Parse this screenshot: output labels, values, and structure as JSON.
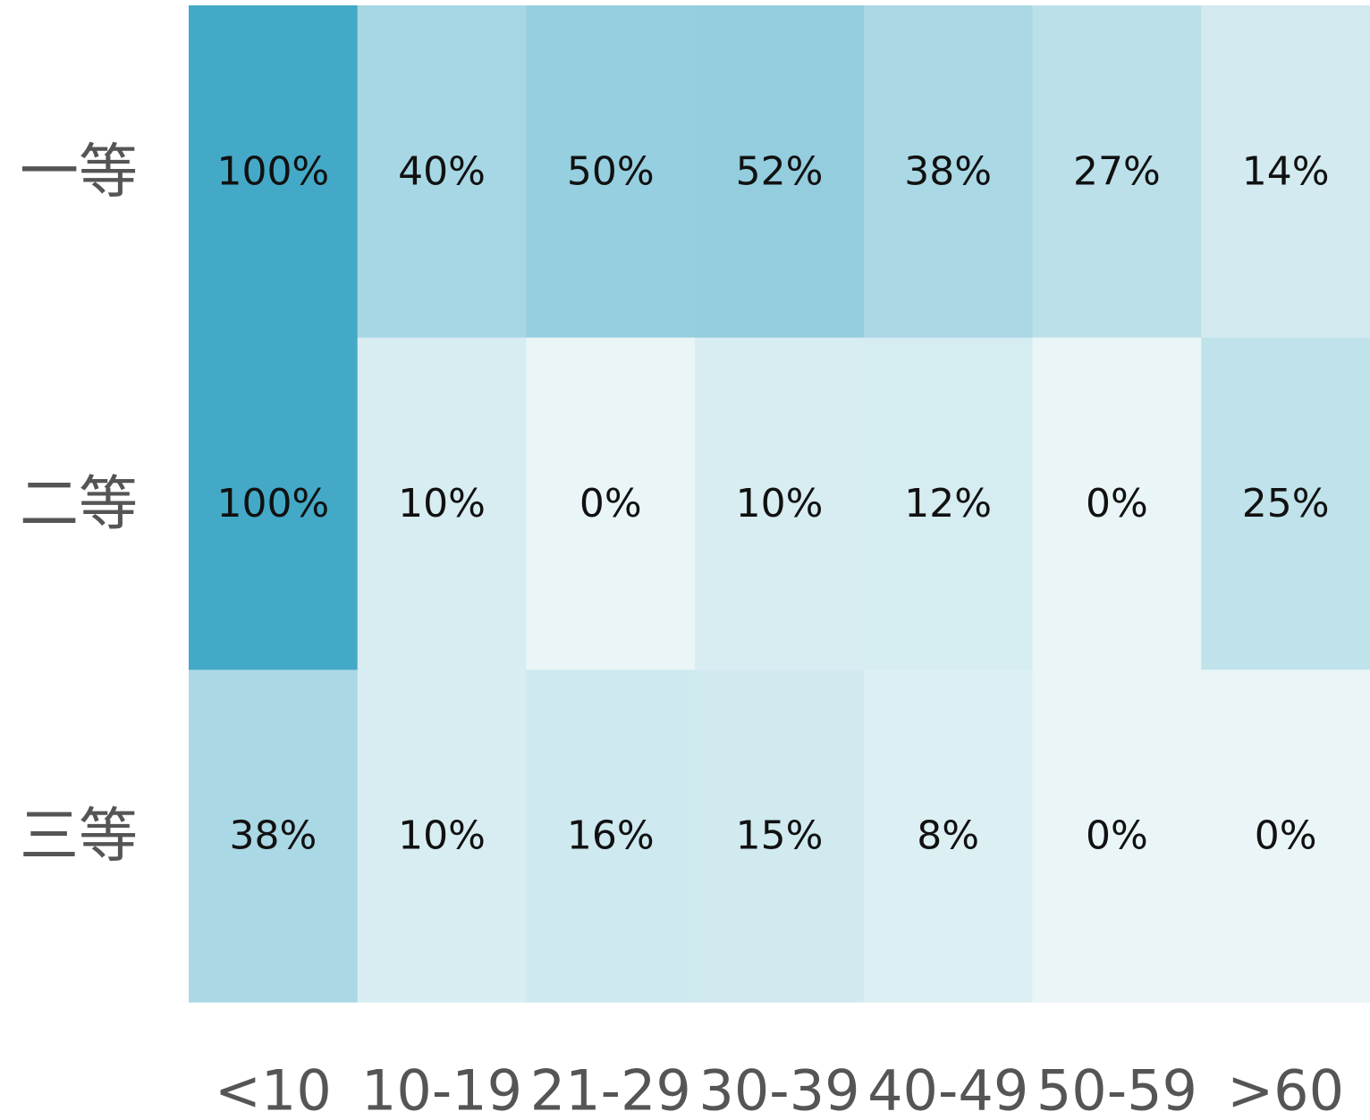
{
  "chart_data": {
    "type": "heatmap",
    "rows": [
      "一等",
      "二等",
      "三等"
    ],
    "columns": [
      "<10",
      "10-19",
      "21-29",
      "30-39",
      "40-49",
      "50-59",
      ">60"
    ],
    "values": [
      [
        100,
        40,
        50,
        52,
        38,
        27,
        14
      ],
      [
        100,
        10,
        0,
        10,
        12,
        0,
        25
      ],
      [
        38,
        10,
        16,
        15,
        8,
        0,
        0
      ]
    ],
    "cell_labels": [
      [
        "100%",
        "40%",
        "50%",
        "52%",
        "38%",
        "27%",
        "14%"
      ],
      [
        "100%",
        "10%",
        "0%",
        "10%",
        "12%",
        "0%",
        "25%"
      ],
      [
        "38%",
        "10%",
        "16%",
        "15%",
        "8%",
        "0%",
        "0%"
      ]
    ],
    "value_unit": "%",
    "value_range": [
      0,
      100
    ],
    "color_scale": {
      "low": "#e9f5f7",
      "high": "#43a9c7"
    },
    "legend": "none",
    "grid": false
  }
}
